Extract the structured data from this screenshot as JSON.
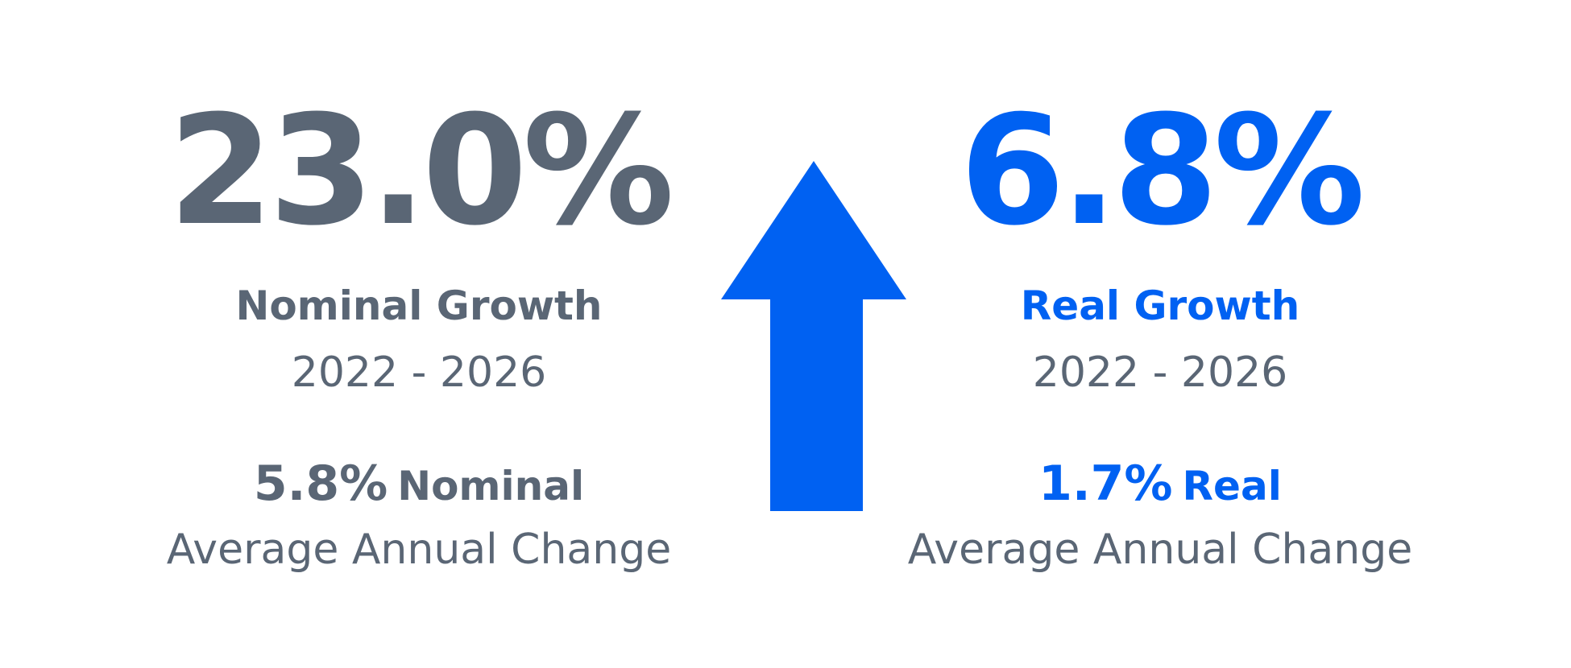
{
  "colors": {
    "nominal": "#5a6675",
    "real": "#0061f2",
    "arrow": "#0061f2"
  },
  "nominal": {
    "growth_value": "23.0%",
    "title": "Nominal Growth",
    "period": "2022 - 2026",
    "avg_value": "5.8%",
    "avg_word": "Nominal",
    "avg_label": "Average Annual Change"
  },
  "real": {
    "growth_value": "6.8%",
    "title": "Real Growth",
    "period": "2022 - 2026",
    "avg_value": "1.7%",
    "avg_word": "Real",
    "avg_label": "Average Annual Change"
  },
  "icons": {
    "center": "arrow-up-icon"
  }
}
